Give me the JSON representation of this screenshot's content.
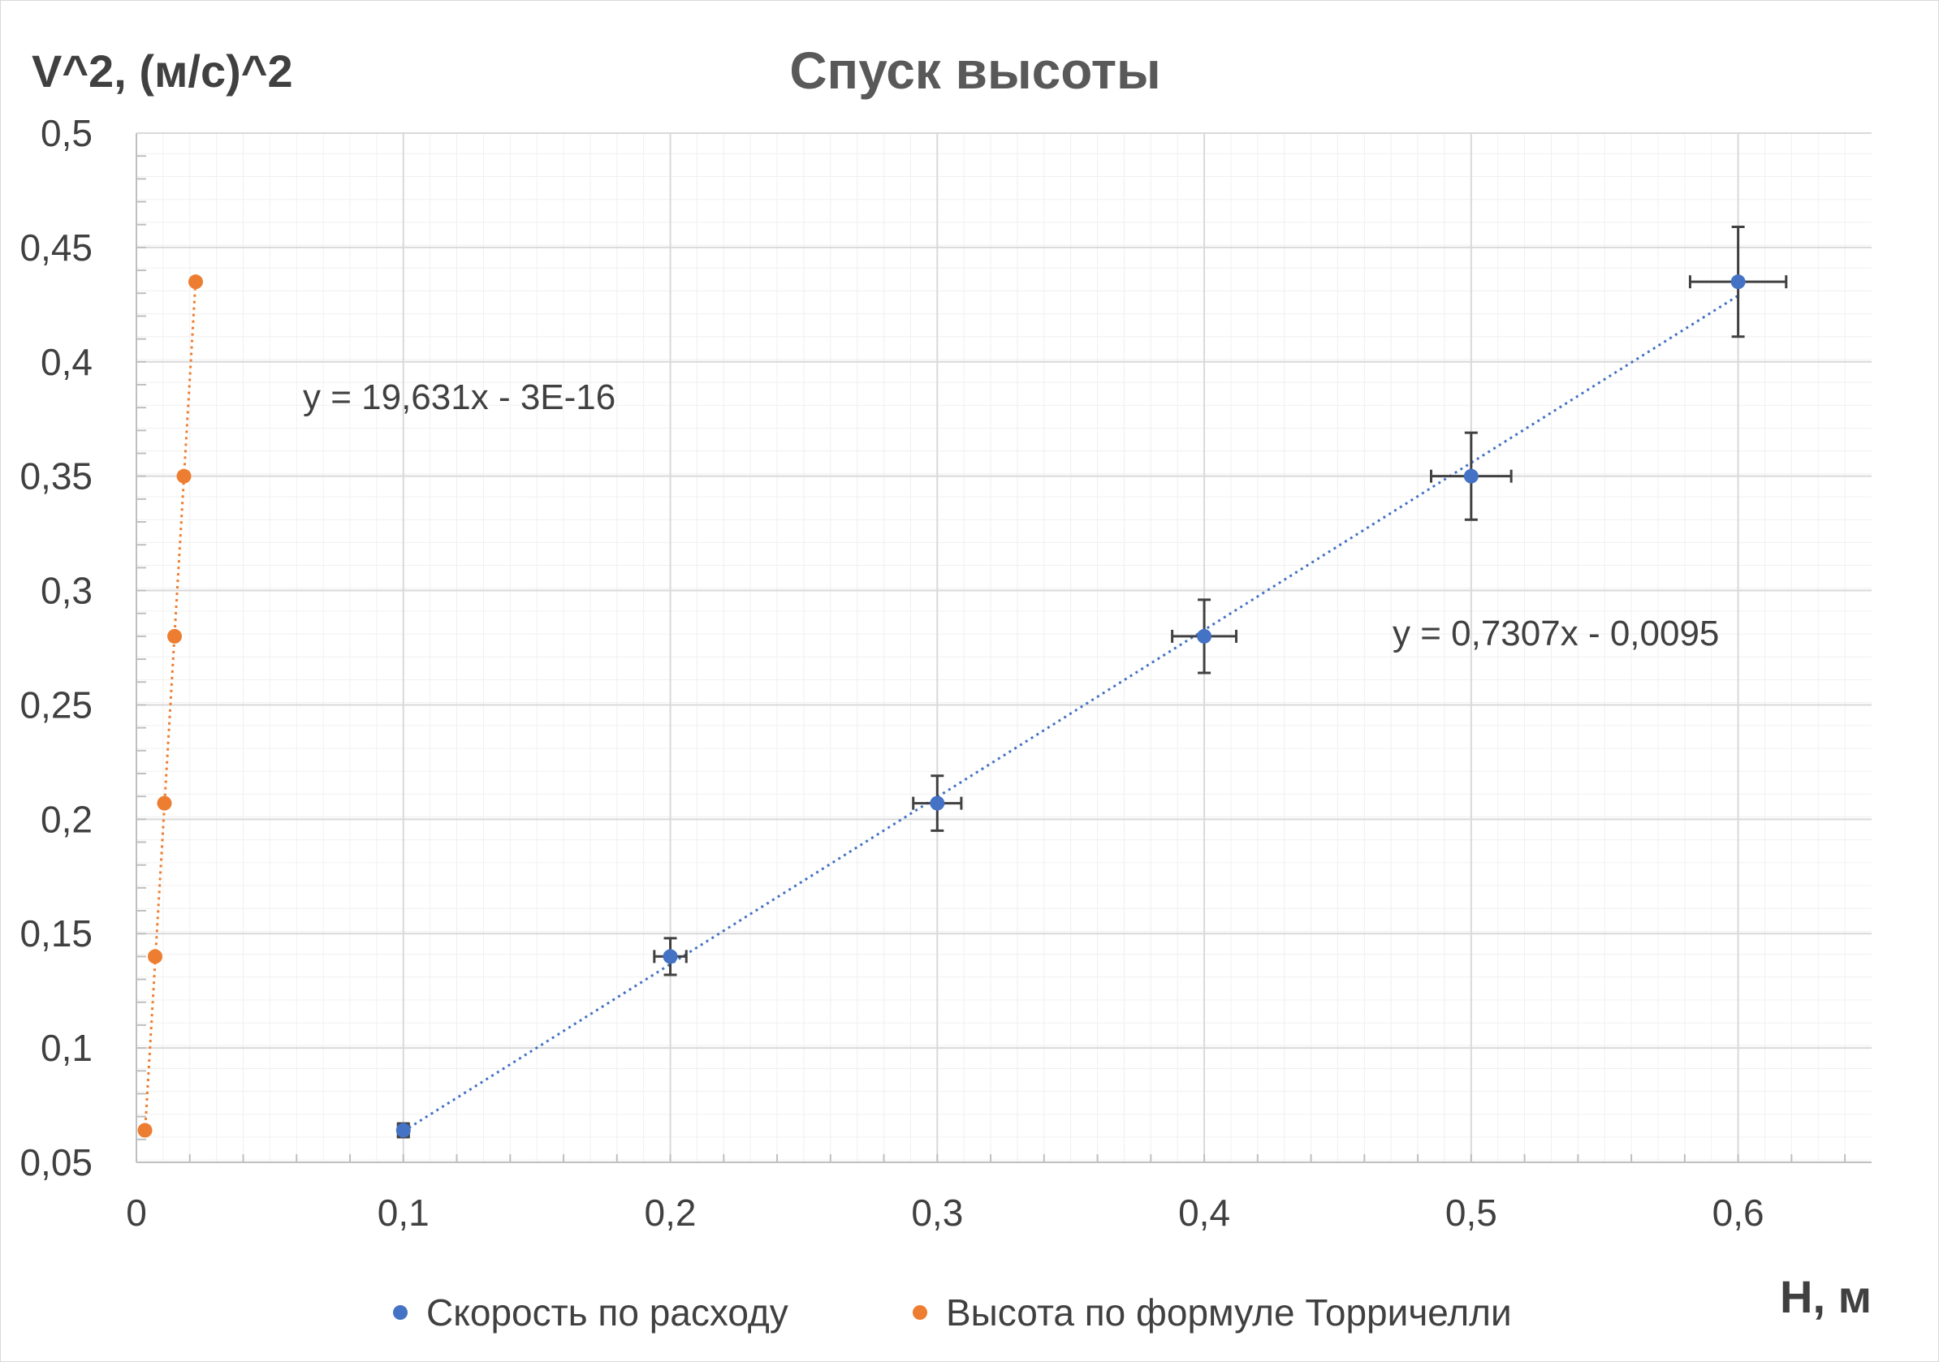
{
  "chart_data": {
    "type": "scatter",
    "title": "Спуск высоты",
    "xlabel": "H, м",
    "ylabel": "V^2, (м/с)^2",
    "xlim": [
      0,
      0.65
    ],
    "ylim": [
      0.05,
      0.5
    ],
    "x_ticks": [
      "0",
      "0,1",
      "0,2",
      "0,3",
      "0,4",
      "0,5",
      "0,6"
    ],
    "y_ticks": [
      "0,05",
      "0,1",
      "0,15",
      "0,2",
      "0,25",
      "0,3",
      "0,35",
      "0,4",
      "0,45",
      "0,5"
    ],
    "grid": true,
    "legend_position": "bottom",
    "series": [
      {
        "name": "Скорость по расходу",
        "color": "#4472c4",
        "points": [
          {
            "x": 0.1,
            "y": 0.064,
            "xerr": 0.002,
            "yerr": 0.003
          },
          {
            "x": 0.2,
            "y": 0.14,
            "xerr": 0.006,
            "yerr": 0.008
          },
          {
            "x": 0.3,
            "y": 0.207,
            "xerr": 0.009,
            "yerr": 0.012
          },
          {
            "x": 0.4,
            "y": 0.28,
            "xerr": 0.012,
            "yerr": 0.016
          },
          {
            "x": 0.5,
            "y": 0.35,
            "xerr": 0.015,
            "yerr": 0.019
          },
          {
            "x": 0.6,
            "y": 0.435,
            "xerr": 0.018,
            "yerr": 0.024
          }
        ],
        "trendline": {
          "slope": 0.7307,
          "intercept": -0.0095,
          "label": "y = 0,7307x - 0,0095"
        }
      },
      {
        "name": "Высота по формуле Торричелли",
        "color": "#ed7d31",
        "points": [
          {
            "x": 0.0032,
            "y": 0.064
          },
          {
            "x": 0.007,
            "y": 0.14
          },
          {
            "x": 0.0105,
            "y": 0.207
          },
          {
            "x": 0.0143,
            "y": 0.28
          },
          {
            "x": 0.0178,
            "y": 0.35
          },
          {
            "x": 0.0222,
            "y": 0.435
          }
        ],
        "trendline": {
          "slope": 19.631,
          "intercept": 0,
          "label": "y = 19,631x - 3E-16"
        }
      }
    ],
    "error_bar_color": "#404040"
  }
}
